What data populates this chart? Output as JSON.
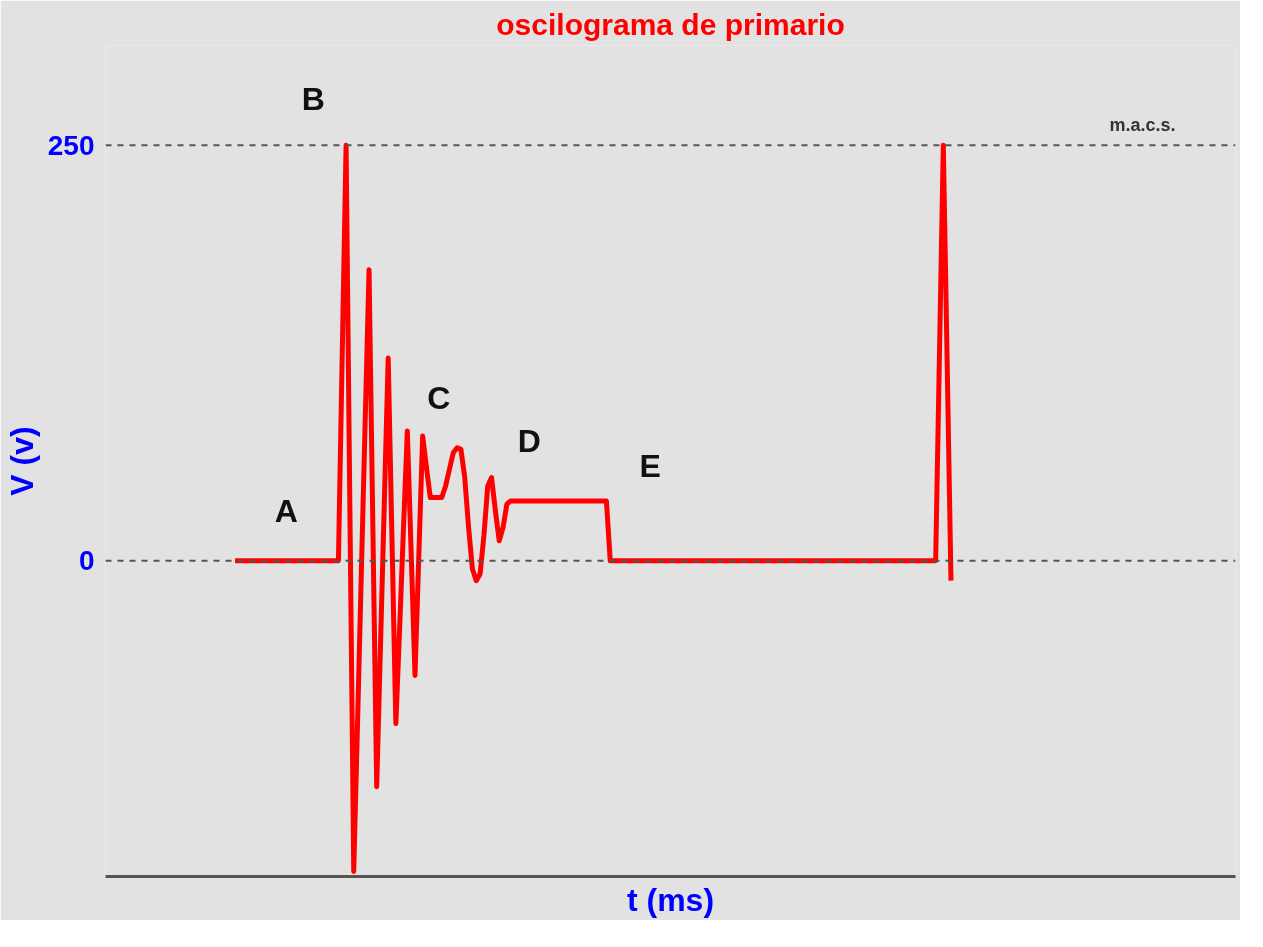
{
  "chart_data": {
    "type": "line",
    "title": "oscilograma de primario",
    "xlabel": "t (ms)",
    "ylabel": "V (v)",
    "categories": [
      null,
      null,
      null,
      null,
      null,
      null,
      null,
      null,
      null,
      null,
      null,
      null,
      null,
      null,
      null,
      null,
      null,
      null,
      null,
      null,
      null,
      null,
      null,
      null,
      null,
      null,
      null,
      null,
      null,
      null,
      null,
      null,
      null,
      null,
      null,
      null,
      null,
      null,
      null,
      null,
      null,
      null,
      null,
      null,
      null,
      null,
      null,
      null,
      null,
      null,
      null,
      null,
      null,
      null,
      null,
      null,
      null,
      null,
      null,
      null,
      null,
      null,
      null,
      null,
      null,
      null,
      null,
      null,
      null,
      null,
      null,
      null,
      null,
      null,
      null,
      null,
      null,
      null,
      null,
      null,
      null,
      null,
      null,
      null,
      null,
      null,
      null,
      null,
      null,
      null,
      null,
      null,
      null,
      null,
      null,
      null,
      null,
      null,
      null,
      null,
      null,
      null,
      null,
      null,
      null,
      null,
      null,
      null,
      null,
      null,
      null,
      null,
      null,
      null,
      null,
      null,
      null,
      null,
      null,
      null,
      null,
      null,
      null,
      null,
      null,
      null,
      null,
      null,
      null,
      null,
      null,
      null,
      null,
      null,
      null,
      null,
      null,
      null,
      null,
      null,
      null,
      null,
      null,
      null,
      null,
      null,
      null,
      null,
      null,
      null,
      null,
      null,
      null,
      null,
      null,
      null,
      null,
      null,
      null,
      null,
      null,
      null,
      null,
      null,
      null,
      null,
      null,
      null,
      null,
      null,
      null,
      null,
      null,
      null,
      null,
      null,
      null,
      null,
      null,
      null,
      null,
      null,
      null,
      null,
      null,
      null,
      null,
      null
    ],
    "series": [
      {
        "color": "#ff0000",
        "values": [
          0,
          0,
          0,
          0,
          0,
          0,
          0,
          0,
          0,
          0,
          0,
          0,
          0,
          0,
          0,
          0,
          0,
          0,
          0,
          0,
          0,
          0,
          0,
          0,
          0,
          0,
          0,
          0,
          125,
          250,
          30,
          -187,
          -97,
          -6,
          85,
          175,
          20,
          -136,
          -50,
          36,
          122,
          12,
          -98,
          -40,
          20,
          78,
          5,
          -69,
          3,
          75,
          56,
          38,
          38,
          38,
          38,
          45,
          55,
          65,
          68,
          67,
          50,
          20,
          -5,
          -12,
          -8,
          15,
          45,
          50,
          30,
          12,
          20,
          34,
          36,
          36,
          36,
          36,
          36,
          36,
          36,
          36,
          36,
          36,
          36,
          36,
          36,
          36,
          36,
          36,
          36,
          36,
          36,
          36,
          36,
          36,
          36,
          36,
          36,
          36,
          0,
          0,
          0,
          0,
          0,
          0,
          0,
          0,
          0,
          0,
          0,
          0,
          0,
          0,
          0,
          0,
          0,
          0,
          0,
          0,
          0,
          0,
          0,
          0,
          0,
          0,
          0,
          0,
          0,
          0,
          0,
          0,
          0,
          0,
          0,
          0,
          0,
          0,
          0,
          0,
          0,
          0,
          0,
          0,
          0,
          0,
          0,
          0,
          0,
          0,
          0,
          0,
          0,
          0,
          0,
          0,
          0,
          0,
          0,
          0,
          0,
          0,
          0,
          0,
          0,
          0,
          0,
          0,
          0,
          0,
          0,
          0,
          0,
          0,
          0,
          0,
          0,
          0,
          0,
          0,
          0,
          0,
          0,
          0,
          0,
          0,
          125,
          250,
          120,
          -12
        ]
      }
    ],
    "ylim": [
      -190,
      310
    ],
    "yticks": [
      0,
      250
    ],
    "tick_labels": "y",
    "marker": "none",
    "line_style": "solid",
    "ref_lines": [
      {
        "axis": "y",
        "value": 250,
        "label": "m.a.c.s.",
        "color": "#555555",
        "line_style": "dashed"
      },
      {
        "axis": "y",
        "value": 0,
        "label": null,
        "color": "#555555",
        "line_style": "dashed"
      }
    ],
    "annotations": [
      "A",
      "B",
      "C",
      "D",
      "E"
    ]
  }
}
